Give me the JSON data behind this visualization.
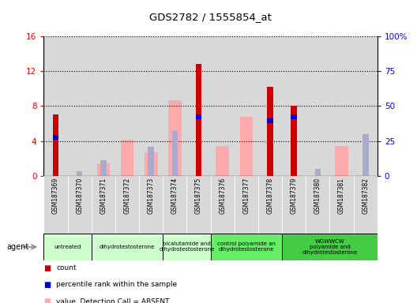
{
  "title": "GDS2782 / 1555854_at",
  "samples": [
    "GSM187369",
    "GSM187370",
    "GSM187371",
    "GSM187372",
    "GSM187373",
    "GSM187374",
    "GSM187375",
    "GSM187376",
    "GSM187377",
    "GSM187378",
    "GSM187379",
    "GSM187380",
    "GSM187381",
    "GSM187382"
  ],
  "count_values": [
    7.0,
    0,
    0,
    0,
    0,
    0,
    12.8,
    0,
    0,
    10.2,
    8.0,
    0,
    0,
    0
  ],
  "percentile_rank_pct": [
    29.0,
    0,
    0,
    0,
    0,
    0,
    44.0,
    0,
    0,
    41.0,
    44.0,
    0,
    0,
    0
  ],
  "absent_value": [
    0,
    0,
    1.4,
    4.1,
    2.7,
    8.7,
    0,
    3.4,
    6.8,
    0,
    0,
    0,
    3.4,
    0
  ],
  "absent_rank_pct": [
    0,
    3.0,
    11.0,
    0,
    21.0,
    32.0,
    0,
    0,
    0,
    0,
    0,
    5.0,
    0,
    30.0
  ],
  "groups": [
    {
      "name": "untreated",
      "start": 0,
      "end": 2,
      "color": "#ccffcc"
    },
    {
      "name": "dihydrotestosterone",
      "start": 2,
      "end": 5,
      "color": "#ccffcc"
    },
    {
      "name": "bicalutamide and\ndihydrotestosterone",
      "start": 5,
      "end": 7,
      "color": "#ccffcc"
    },
    {
      "name": "control polyamide an\ndihydrotestosterone",
      "start": 7,
      "end": 10,
      "color": "#66ee66"
    },
    {
      "name": "WGWWCW\npolyamide and\ndihydrotestosterone",
      "start": 10,
      "end": 14,
      "color": "#44cc44"
    }
  ],
  "left_ylim": [
    0,
    16
  ],
  "right_ylim": [
    0,
    100
  ],
  "left_yticks": [
    0,
    4,
    8,
    12,
    16
  ],
  "right_yticks": [
    0,
    25,
    50,
    75,
    100
  ],
  "right_yticklabels": [
    "0",
    "25",
    "50",
    "75",
    "100%"
  ],
  "color_count": "#cc0000",
  "color_percentile": "#0000cc",
  "color_absent_value": "#ffaaaa",
  "color_absent_rank": "#aaaacc",
  "bar_width": 0.5,
  "col_bg": "#d8d8d8"
}
